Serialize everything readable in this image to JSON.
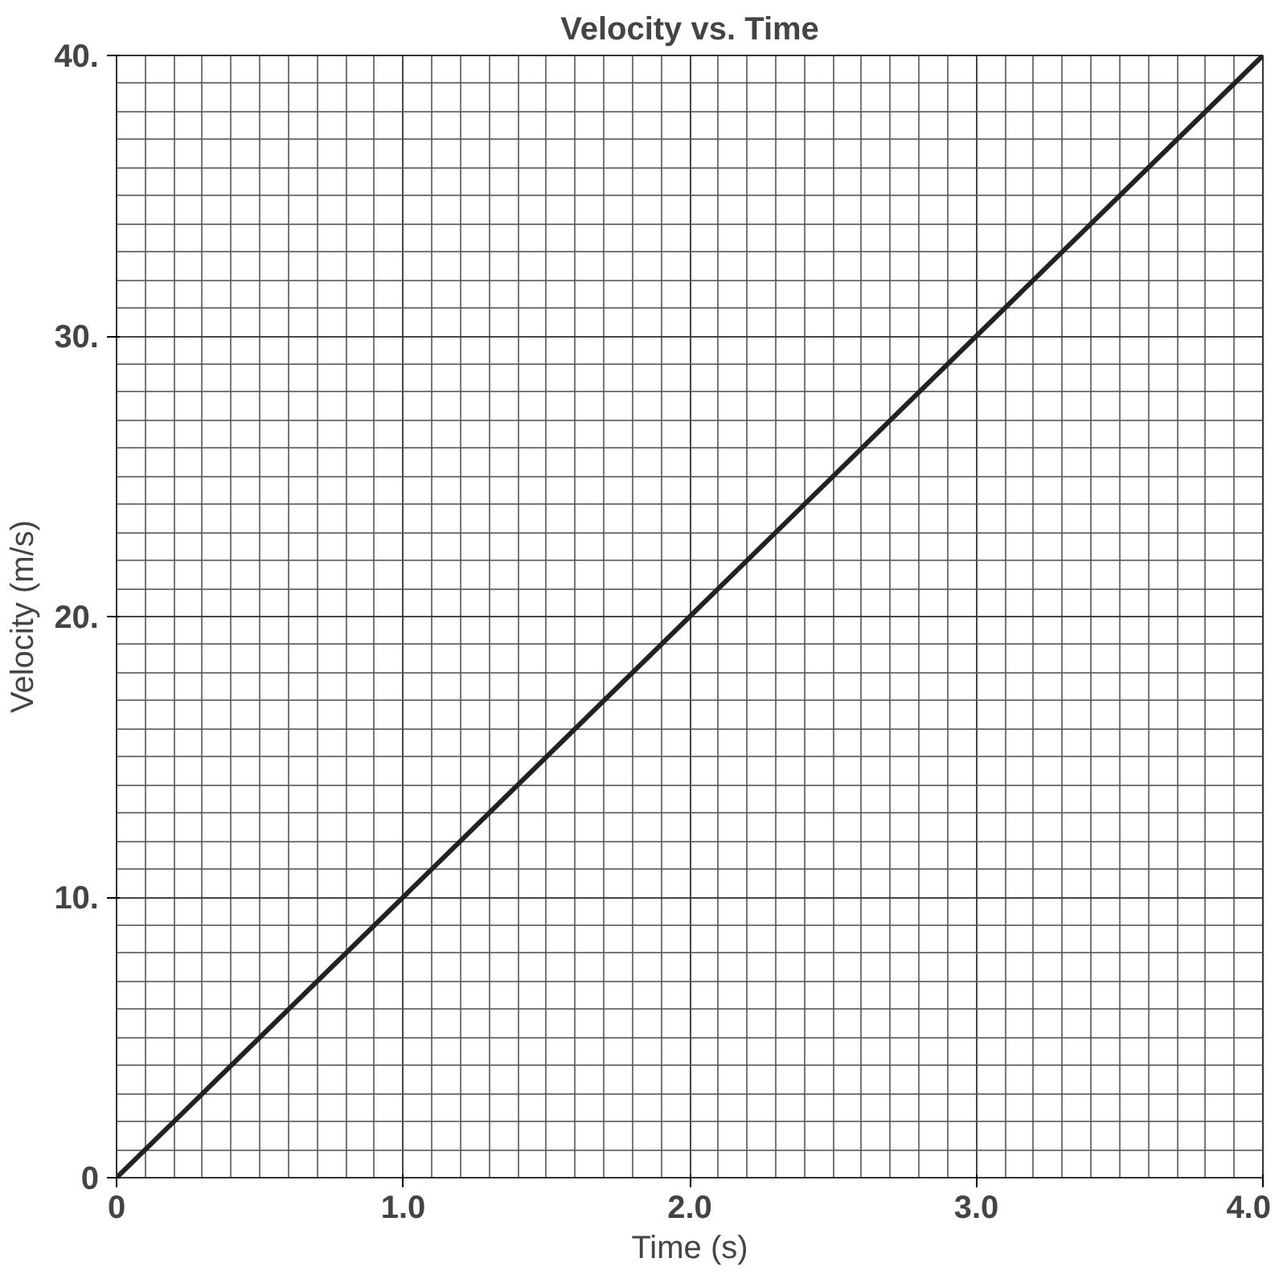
{
  "chart_data": {
    "type": "line",
    "title": "Velocity vs. Time",
    "xlabel": "Time (s)",
    "ylabel": "Velocity (m/s)",
    "x": [
      0,
      4.0
    ],
    "series": [
      {
        "color": "#222222",
        "values": [
          0,
          40
        ]
      }
    ],
    "xlim": [
      0,
      4.0
    ],
    "ylim": [
      0,
      40
    ],
    "xticks": [
      0,
      {
        "value": 1,
        "label": "1.0"
      },
      {
        "value": 2,
        "label": "2.0"
      },
      {
        "value": 3,
        "label": "3.0"
      },
      {
        "value": 4,
        "label": "4.0"
      }
    ],
    "yticks": [
      0,
      {
        "value": 10,
        "label": "10."
      },
      {
        "value": 20,
        "label": "20."
      },
      {
        "value": 30,
        "label": "30."
      },
      {
        "value": 40,
        "label": "40."
      }
    ],
    "grid": true,
    "marker": "none",
    "line_style": "solid"
  }
}
